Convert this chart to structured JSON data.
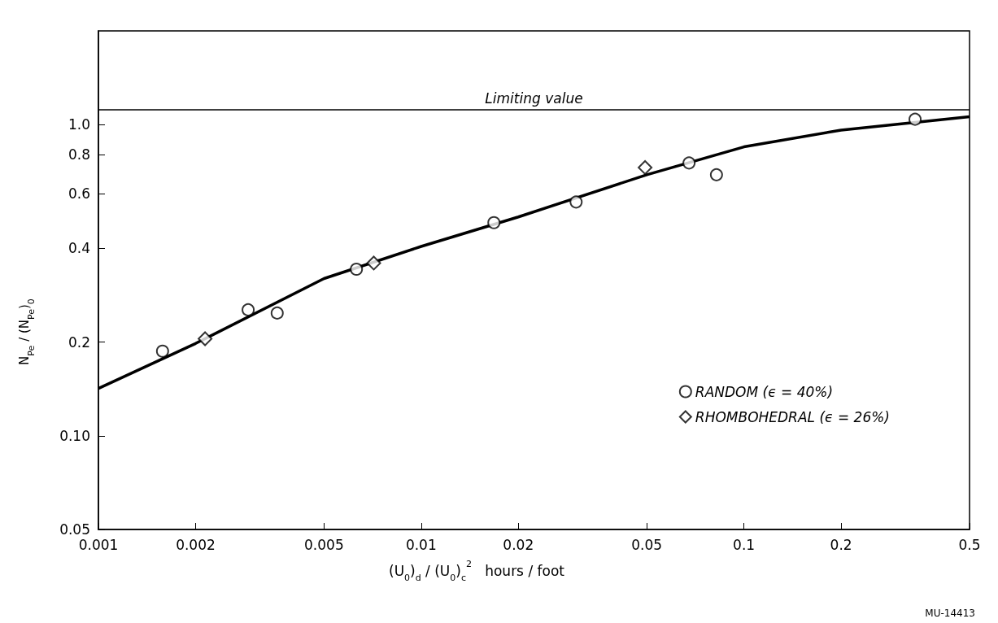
{
  "chart_data": {
    "type": "scatter",
    "xlabel": "(U$_{0}$)$_{d}$ / (U$_{0}$)$_{c}$$^{2}$   hours / foot",
    "ylabel": "N$_{Pe}$ / (N$_{Pe}$)$_{0}$",
    "log": "xy",
    "xlim": [
      0.001,
      0.5
    ],
    "ylim": [
      0.05,
      2
    ],
    "xticks": [
      0.001,
      0.002,
      0.005,
      0.01,
      0.02,
      0.05,
      0.1,
      0.2,
      0.5
    ],
    "yticks": [
      0.05,
      {
        "value": 0.1,
        "label": "0.10"
      },
      0.2,
      0.4,
      0.6,
      0.8,
      {
        "value": 1,
        "label": "1.0"
      }
    ],
    "grid": false,
    "legend": "right",
    "ref_lines": [
      {
        "axis": "y",
        "value": 1.12,
        "label": "Limiting value"
      }
    ],
    "annotations": [
      "MU-14413"
    ],
    "series": [
      {
        "name": "RANDOM (ϵ = 40%)",
        "color": "#000000",
        "marker": "circle",
        "x": [
          0.00158,
          0.00291,
          0.00358,
          0.0063,
          0.0168,
          0.0302,
          0.0676,
          0.0822,
          0.339
        ],
        "values": [
          0.187,
          0.254,
          0.248,
          0.343,
          0.484,
          0.564,
          0.753,
          0.69,
          1.04
        ]
      },
      {
        "name": "RHOMBOHEDRAL (ϵ = 26%)",
        "color": "#000000",
        "marker": "diamond",
        "x": [
          0.00214,
          0.00713,
          0.0494
        ],
        "values": [
          0.205,
          0.359,
          0.728
        ]
      },
      {
        "type": "line",
        "color": "#000000",
        "marker": "none",
        "x": [
          0.001,
          0.002,
          0.005,
          0.01,
          0.02,
          0.05,
          0.1,
          0.2,
          0.5
        ],
        "values": [
          0.142,
          0.198,
          0.32,
          0.406,
          0.505,
          0.69,
          0.848,
          0.96,
          1.06
        ]
      }
    ]
  }
}
